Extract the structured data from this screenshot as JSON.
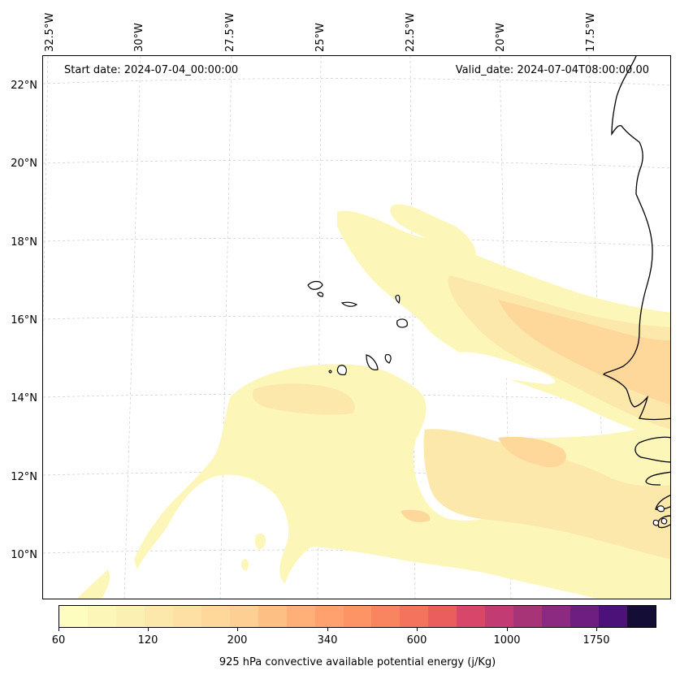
{
  "map": {
    "start_date": "Start date: 2024-07-04_00:00:00",
    "valid_date": "Valid_date: 2024-07-04T08:00:00.00",
    "longitude_labels": [
      "32.5°W",
      "30°W",
      "27.5°W",
      "25°W",
      "22.5°W",
      "20°W",
      "17.5°W"
    ],
    "latitude_labels": [
      "22°N",
      "20°N",
      "18°N",
      "16°N",
      "14°N",
      "12°N",
      "10°N"
    ],
    "field": "925 hPa convective available potential energy",
    "region": "Cabo Verde islands and West African coast (Senegal, Gambia, Guinea-Bissau, Mauritania)"
  },
  "colorbar": {
    "label": "925 hPa convective available potential energy (j/Kg)",
    "ticks": [
      "60",
      "120",
      "200",
      "340",
      "600",
      "1000",
      "1750"
    ],
    "colors": [
      "#fcfdbf",
      "#fcf6b8",
      "#fbefb2",
      "#fde8ab",
      "#fde1a4",
      "#fed89b",
      "#fecf92",
      "#febf84",
      "#feb078",
      "#fea16e",
      "#fd9466",
      "#f98460",
      "#f4735c",
      "#ea5f5d",
      "#d8466a",
      "#c23c73",
      "#a83478",
      "#8c2981",
      "#6e1e80",
      "#4d127a",
      "#140e36"
    ]
  }
}
